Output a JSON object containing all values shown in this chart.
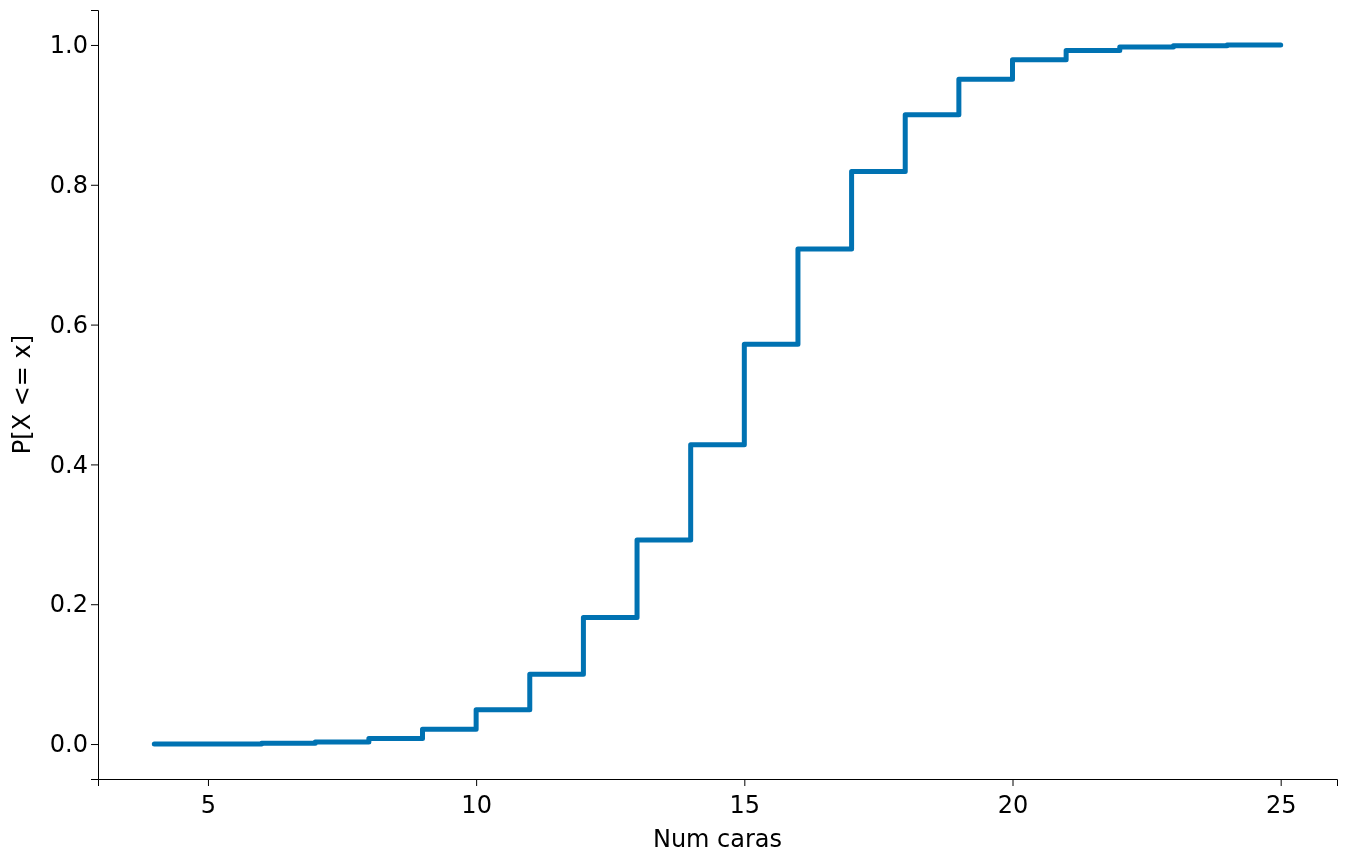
{
  "chart_data": {
    "type": "step",
    "xlabel": "Num caras",
    "ylabel": "P[X <= x]",
    "x": [
      4,
      5,
      6,
      7,
      8,
      9,
      10,
      11,
      12,
      13,
      14,
      15,
      16,
      17,
      18,
      19,
      20,
      21,
      22,
      23,
      24,
      25
    ],
    "series": [
      {
        "color": "#0072b2",
        "values": [
          0.0,
          0.0,
          0.001,
          0.003,
          0.008,
          0.021,
          0.049,
          0.1,
          0.181,
          0.292,
          0.428,
          0.572,
          0.708,
          0.819,
          0.9,
          0.951,
          0.979,
          0.992,
          0.997,
          0.999,
          1.0,
          1.0
        ]
      }
    ],
    "xlim": [
      2.95,
      26.05
    ],
    "ylim": [
      -0.05,
      1.05
    ],
    "xticks": [
      5,
      10,
      15,
      20,
      25
    ],
    "yticks": [
      {
        "value": 0,
        "label": "0.0"
      },
      {
        "value": 0.2,
        "label": "0.2"
      },
      {
        "value": 0.4,
        "label": "0.4"
      },
      {
        "value": 0.6,
        "label": "0.6"
      },
      {
        "value": 0.8,
        "label": "0.8"
      },
      {
        "value": 1,
        "label": "1.0"
      }
    ],
    "grid": false
  }
}
